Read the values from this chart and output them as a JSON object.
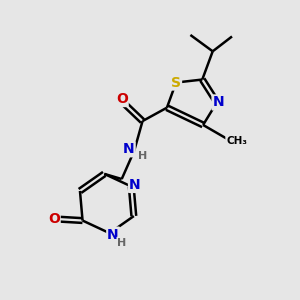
{
  "background_color": "#e6e6e6",
  "atom_colors": {
    "C": "#000000",
    "N": "#0000cc",
    "O": "#cc0000",
    "S": "#ccaa00",
    "H": "#666666"
  },
  "bond_color": "#000000",
  "bond_width": 1.8,
  "fig_size": [
    3.0,
    3.0
  ],
  "dpi": 100
}
